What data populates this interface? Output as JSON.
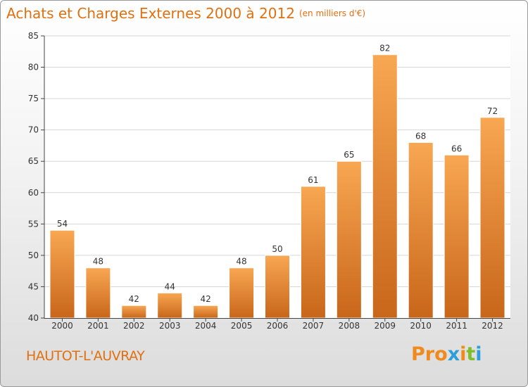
{
  "header": {
    "title": "Achats et Charges Externes 2000 à 2012",
    "unit": "(en milliers d'€)"
  },
  "footer": {
    "commune": "HAUTOT-L'AUVRAY",
    "logo_text": "Proxiti"
  },
  "colors": {
    "accent": "#e07010",
    "bar_top": "#f8a752",
    "bar_bottom": "#c8661a",
    "logo": [
      "#f08a1c",
      "#f08a1c",
      "#f08a1c",
      "#2c9fdb",
      "#f08a1c",
      "#7cbf2a",
      "#2c9fdb"
    ]
  },
  "chart_data": {
    "type": "bar",
    "categories": [
      "2000",
      "2001",
      "2002",
      "2003",
      "2004",
      "2005",
      "2006",
      "2007",
      "2008",
      "2009",
      "2010",
      "2011",
      "2012"
    ],
    "values": [
      54,
      48,
      42,
      44,
      42,
      48,
      50,
      61,
      65,
      82,
      68,
      66,
      72
    ],
    "data_labels": [
      "54",
      "48",
      "42",
      "44",
      "42",
      "48",
      "50",
      "61",
      "65",
      "82",
      "68",
      "66",
      "72"
    ],
    "yticks": [
      "40",
      "45",
      "50",
      "55",
      "60",
      "65",
      "70",
      "75",
      "80",
      "85"
    ],
    "ylim": [
      40,
      85
    ],
    "grid": true,
    "title": "Achats et Charges Externes 2000 à 2012",
    "xlabel": "",
    "ylabel": ""
  }
}
